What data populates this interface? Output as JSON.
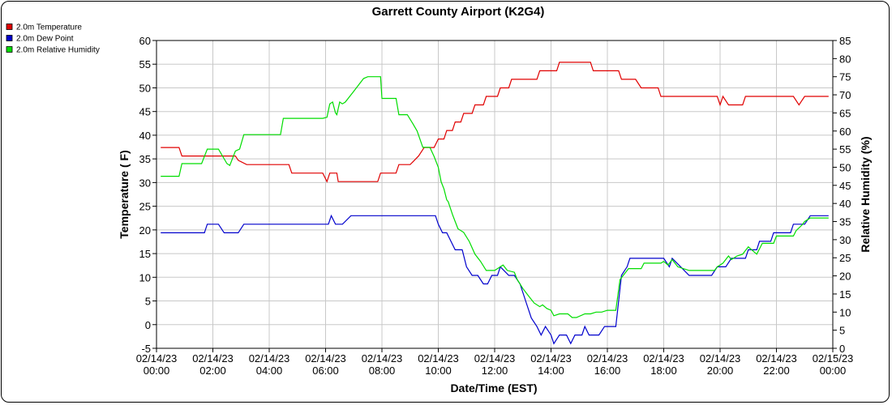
{
  "chart_data": {
    "type": "line",
    "title": "Garrett County Airport (K2G4)",
    "xlabel": "Date/Time (EST)",
    "ylabel_left": "Temperature ( F)",
    "ylabel_right": "Relative Humidity (%)",
    "x_ticks": [
      {
        "hour": 0,
        "line1": "02/14/23",
        "line2": "00:00"
      },
      {
        "hour": 2,
        "line1": "02/14/23",
        "line2": "02:00"
      },
      {
        "hour": 4,
        "line1": "02/14/23",
        "line2": "04:00"
      },
      {
        "hour": 6,
        "line1": "02/14/23",
        "line2": "06:00"
      },
      {
        "hour": 8,
        "line1": "02/14/23",
        "line2": "08:00"
      },
      {
        "hour": 10,
        "line1": "02/14/23",
        "line2": "10:00"
      },
      {
        "hour": 12,
        "line1": "02/14/23",
        "line2": "12:00"
      },
      {
        "hour": 14,
        "line1": "02/14/23",
        "line2": "14:00"
      },
      {
        "hour": 16,
        "line1": "02/14/23",
        "line2": "16:00"
      },
      {
        "hour": 18,
        "line1": "02/14/23",
        "line2": "18:00"
      },
      {
        "hour": 20,
        "line1": "02/14/23",
        "line2": "20:00"
      },
      {
        "hour": 22,
        "line1": "02/14/23",
        "line2": "22:00"
      },
      {
        "hour": 24,
        "line1": "02/15/23",
        "line2": "00:00"
      }
    ],
    "xlim_hours": [
      0,
      24
    ],
    "ylim_left": [
      -5,
      60
    ],
    "ylim_right": [
      0,
      85
    ],
    "y_ticks_left": [
      -5,
      0,
      5,
      10,
      15,
      20,
      25,
      30,
      35,
      40,
      45,
      50,
      55,
      60
    ],
    "y_ticks_right": [
      0,
      5,
      10,
      15,
      20,
      25,
      30,
      35,
      40,
      45,
      50,
      55,
      60,
      65,
      70,
      75,
      80,
      85
    ],
    "grid": true,
    "legend_position": "top-left",
    "series": [
      {
        "name": "2.0m Temperature",
        "color": "#e00000",
        "axis": "left",
        "points": [
          [
            0.15,
            37.4
          ],
          [
            0.8,
            37.4
          ],
          [
            0.9,
            35.6
          ],
          [
            1.5,
            35.6
          ],
          [
            2.6,
            35.6
          ],
          [
            2.8,
            35.6
          ],
          [
            2.9,
            34.7
          ],
          [
            3.2,
            33.8
          ],
          [
            4.6,
            33.8
          ],
          [
            4.7,
            33.8
          ],
          [
            4.8,
            32.0
          ],
          [
            5.9,
            32.0
          ],
          [
            6.05,
            30.2
          ],
          [
            6.15,
            32.0
          ],
          [
            6.4,
            32.0
          ],
          [
            6.45,
            30.2
          ],
          [
            7.0,
            30.2
          ],
          [
            7.85,
            30.2
          ],
          [
            7.95,
            32.0
          ],
          [
            8.5,
            32.0
          ],
          [
            8.6,
            33.8
          ],
          [
            9.0,
            33.8
          ],
          [
            9.3,
            35.6
          ],
          [
            9.5,
            37.4
          ],
          [
            9.85,
            37.4
          ],
          [
            10.0,
            39.2
          ],
          [
            10.2,
            39.2
          ],
          [
            10.3,
            41.0
          ],
          [
            10.5,
            41.0
          ],
          [
            10.6,
            42.8
          ],
          [
            10.8,
            42.8
          ],
          [
            10.9,
            44.6
          ],
          [
            11.2,
            44.6
          ],
          [
            11.3,
            46.4
          ],
          [
            11.6,
            46.4
          ],
          [
            11.7,
            48.2
          ],
          [
            12.1,
            48.2
          ],
          [
            12.2,
            50.0
          ],
          [
            12.5,
            50.0
          ],
          [
            12.6,
            51.8
          ],
          [
            13.5,
            51.8
          ],
          [
            13.6,
            53.6
          ],
          [
            14.2,
            53.6
          ],
          [
            14.3,
            55.4
          ],
          [
            15.0,
            55.4
          ],
          [
            15.1,
            55.4
          ],
          [
            15.4,
            55.4
          ],
          [
            15.5,
            53.6
          ],
          [
            16.4,
            53.6
          ],
          [
            16.5,
            51.8
          ],
          [
            17.0,
            51.8
          ],
          [
            17.2,
            50.0
          ],
          [
            17.8,
            50.0
          ],
          [
            17.9,
            48.2
          ],
          [
            19.9,
            48.2
          ],
          [
            20.0,
            46.4
          ],
          [
            20.1,
            48.2
          ],
          [
            20.3,
            46.4
          ],
          [
            20.8,
            46.4
          ],
          [
            20.9,
            48.2
          ],
          [
            22.6,
            48.2
          ],
          [
            22.8,
            46.4
          ],
          [
            23.0,
            48.2
          ],
          [
            23.85,
            48.2
          ]
        ]
      },
      {
        "name": "2.0m Dew Point",
        "color": "#0000cc",
        "axis": "left",
        "points": [
          [
            0.15,
            19.4
          ],
          [
            1.6,
            19.4
          ],
          [
            1.7,
            19.4
          ],
          [
            1.8,
            21.2
          ],
          [
            2.2,
            21.2
          ],
          [
            2.4,
            19.4
          ],
          [
            2.9,
            19.4
          ],
          [
            3.1,
            21.2
          ],
          [
            6.1,
            21.2
          ],
          [
            6.2,
            23.0
          ],
          [
            6.35,
            21.2
          ],
          [
            6.6,
            21.2
          ],
          [
            6.9,
            23.0
          ],
          [
            9.8,
            23.0
          ],
          [
            9.9,
            23.0
          ],
          [
            10.0,
            21.2
          ],
          [
            10.15,
            19.4
          ],
          [
            10.3,
            19.4
          ],
          [
            10.45,
            17.6
          ],
          [
            10.6,
            15.8
          ],
          [
            10.85,
            15.8
          ],
          [
            11.0,
            12.2
          ],
          [
            11.2,
            10.4
          ],
          [
            11.4,
            10.4
          ],
          [
            11.6,
            8.6
          ],
          [
            11.75,
            8.6
          ],
          [
            11.9,
            10.4
          ],
          [
            12.1,
            10.4
          ],
          [
            12.2,
            12.2
          ],
          [
            12.5,
            10.4
          ],
          [
            12.7,
            10.4
          ],
          [
            12.9,
            8.6
          ],
          [
            13.1,
            5.0
          ],
          [
            13.3,
            1.4
          ],
          [
            13.5,
            -0.4
          ],
          [
            13.65,
            -2.2
          ],
          [
            13.8,
            -0.4
          ],
          [
            14.0,
            -2.2
          ],
          [
            14.1,
            -4.0
          ],
          [
            14.3,
            -2.2
          ],
          [
            14.55,
            -2.2
          ],
          [
            14.7,
            -4.0
          ],
          [
            14.85,
            -2.2
          ],
          [
            15.1,
            -2.2
          ],
          [
            15.2,
            -0.4
          ],
          [
            15.35,
            -2.2
          ],
          [
            15.7,
            -2.2
          ],
          [
            15.9,
            -0.4
          ],
          [
            16.3,
            -0.4
          ],
          [
            16.5,
            10.4
          ],
          [
            16.7,
            12.2
          ],
          [
            16.8,
            14.0
          ],
          [
            18.0,
            14.0
          ],
          [
            18.2,
            12.2
          ],
          [
            18.3,
            14.0
          ],
          [
            18.6,
            12.2
          ],
          [
            18.9,
            10.4
          ],
          [
            19.7,
            10.4
          ],
          [
            19.9,
            12.2
          ],
          [
            20.2,
            12.2
          ],
          [
            20.4,
            14.0
          ],
          [
            20.9,
            14.0
          ],
          [
            21.0,
            15.8
          ],
          [
            21.3,
            15.8
          ],
          [
            21.4,
            17.6
          ],
          [
            21.8,
            17.6
          ],
          [
            21.9,
            19.4
          ],
          [
            22.5,
            19.4
          ],
          [
            22.6,
            21.2
          ],
          [
            23.0,
            21.2
          ],
          [
            23.2,
            23.0
          ],
          [
            23.85,
            23.0
          ]
        ]
      },
      {
        "name": "2.0m Relative Humidity",
        "color": "#00dd00",
        "axis": "right",
        "points": [
          [
            0.15,
            47.5
          ],
          [
            0.8,
            47.5
          ],
          [
            0.9,
            51.0
          ],
          [
            1.6,
            51.0
          ],
          [
            1.8,
            55.0
          ],
          [
            2.2,
            55.0
          ],
          [
            2.5,
            51.0
          ],
          [
            2.6,
            50.5
          ],
          [
            2.8,
            54.5
          ],
          [
            2.95,
            55.0
          ],
          [
            3.1,
            59.0
          ],
          [
            4.4,
            59.0
          ],
          [
            4.5,
            63.5
          ],
          [
            5.9,
            63.5
          ],
          [
            6.05,
            63.8
          ],
          [
            6.15,
            67.5
          ],
          [
            6.25,
            68.0
          ],
          [
            6.35,
            65.0
          ],
          [
            6.4,
            64.5
          ],
          [
            6.5,
            68.0
          ],
          [
            6.6,
            67.5
          ],
          [
            6.7,
            68.0
          ],
          [
            7.0,
            71.0
          ],
          [
            7.2,
            73.0
          ],
          [
            7.35,
            74.5
          ],
          [
            7.5,
            75.0
          ],
          [
            7.85,
            75.0
          ],
          [
            7.95,
            75.0
          ],
          [
            8.0,
            69.0
          ],
          [
            8.5,
            69.0
          ],
          [
            8.6,
            64.5
          ],
          [
            8.9,
            64.5
          ],
          [
            9.1,
            62.0
          ],
          [
            9.25,
            60.0
          ],
          [
            9.45,
            55.5
          ],
          [
            9.7,
            55.5
          ],
          [
            9.85,
            53.0
          ],
          [
            10.0,
            50.0
          ],
          [
            10.1,
            46.0
          ],
          [
            10.2,
            44.0
          ],
          [
            10.3,
            41.0
          ],
          [
            10.35,
            40.5
          ],
          [
            10.5,
            37.0
          ],
          [
            10.6,
            35.0
          ],
          [
            10.7,
            33.0
          ],
          [
            10.9,
            32.0
          ],
          [
            11.1,
            29.5
          ],
          [
            11.3,
            26.0
          ],
          [
            11.5,
            24.0
          ],
          [
            11.7,
            21.5
          ],
          [
            12.0,
            21.5
          ],
          [
            12.2,
            22.5
          ],
          [
            12.3,
            23.0
          ],
          [
            12.45,
            21.5
          ],
          [
            12.7,
            21.0
          ],
          [
            12.8,
            19.0
          ],
          [
            13.0,
            16.5
          ],
          [
            13.2,
            14.5
          ],
          [
            13.4,
            12.5
          ],
          [
            13.6,
            11.5
          ],
          [
            13.7,
            12.0
          ],
          [
            13.85,
            11.0
          ],
          [
            14.0,
            10.5
          ],
          [
            14.1,
            9.0
          ],
          [
            14.3,
            9.5
          ],
          [
            14.6,
            9.5
          ],
          [
            14.75,
            8.5
          ],
          [
            14.9,
            8.5
          ],
          [
            15.2,
            9.5
          ],
          [
            15.4,
            9.5
          ],
          [
            15.6,
            10.0
          ],
          [
            15.8,
            10.0
          ],
          [
            16.0,
            10.5
          ],
          [
            16.3,
            10.5
          ],
          [
            16.45,
            19.0
          ],
          [
            16.55,
            20.0
          ],
          [
            16.75,
            22.0
          ],
          [
            17.2,
            22.0
          ],
          [
            17.3,
            23.5
          ],
          [
            17.9,
            23.5
          ],
          [
            18.0,
            24.0
          ],
          [
            18.15,
            23.0
          ],
          [
            18.3,
            24.5
          ],
          [
            18.5,
            22.5
          ],
          [
            18.9,
            21.5
          ],
          [
            19.8,
            21.5
          ],
          [
            19.9,
            22.5
          ],
          [
            20.1,
            23.5
          ],
          [
            20.3,
            25.5
          ],
          [
            20.4,
            24.5
          ],
          [
            20.6,
            25.5
          ],
          [
            20.8,
            26.0
          ],
          [
            20.9,
            27.0
          ],
          [
            21.0,
            28.0
          ],
          [
            21.3,
            26.0
          ],
          [
            21.5,
            29.0
          ],
          [
            21.9,
            29.0
          ],
          [
            22.0,
            31.0
          ],
          [
            22.6,
            31.0
          ],
          [
            22.7,
            32.5
          ],
          [
            22.9,
            34.0
          ],
          [
            23.0,
            35.0
          ],
          [
            23.2,
            36.0
          ],
          [
            23.5,
            36.0
          ],
          [
            23.85,
            36.0
          ]
        ]
      }
    ]
  }
}
